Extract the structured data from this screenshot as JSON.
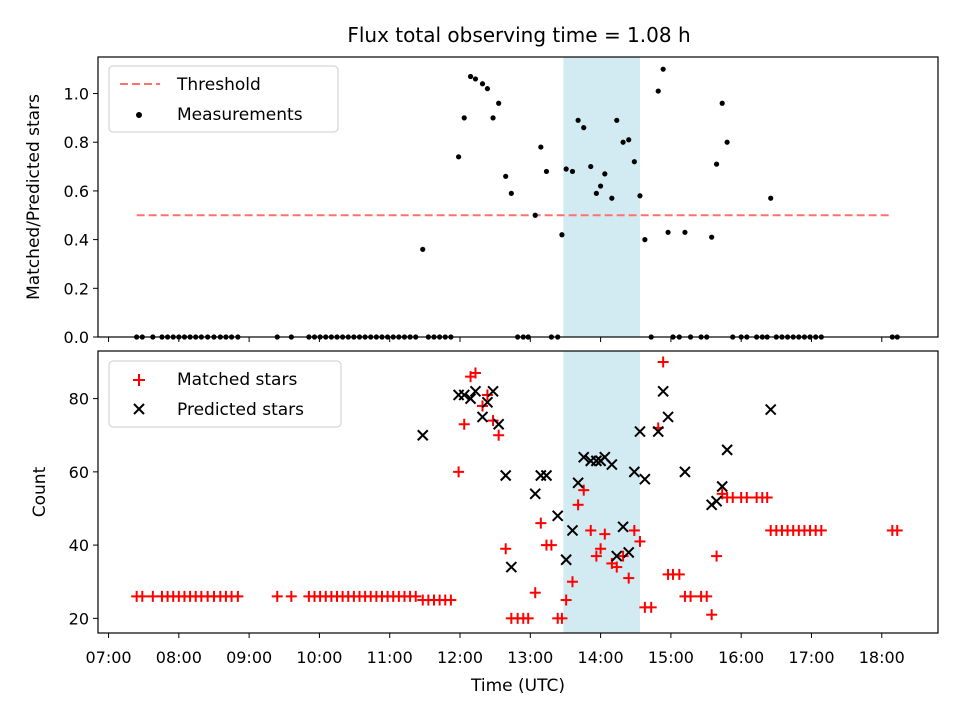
{
  "title": "Flux total observing time = 1.08 h",
  "colors": {
    "threshold": "#ff7070",
    "measurement": "#000000",
    "matched": "#ff0000",
    "predicted": "#000000",
    "span": "#add8e6"
  },
  "chart_data": [
    {
      "type": "scatter",
      "xlabel": "",
      "ylabel": "Matched/Predicted stars",
      "xlim": [
        6.85,
        18.8
      ],
      "ylim": [
        0,
        1.15
      ],
      "yticks": [
        "0.0",
        "0.2",
        "0.4",
        "0.6",
        "0.8",
        "1.0"
      ],
      "grid": false,
      "legend_position": "top-left",
      "shaded_span": [
        13.47,
        14.56
      ],
      "threshold": {
        "name": "Threshold",
        "x": [
          7.4,
          18.15
        ],
        "y": 0.5
      },
      "measurements": {
        "name": "Measurements",
        "points": [
          [
            7.4,
            0
          ],
          [
            7.48,
            0
          ],
          [
            7.63,
            0
          ],
          [
            7.76,
            0
          ],
          [
            7.84,
            0
          ],
          [
            7.92,
            0
          ],
          [
            8.0,
            0
          ],
          [
            8.08,
            0
          ],
          [
            8.16,
            0
          ],
          [
            8.24,
            0
          ],
          [
            8.32,
            0
          ],
          [
            8.41,
            0
          ],
          [
            8.5,
            0
          ],
          [
            8.59,
            0
          ],
          [
            8.67,
            0
          ],
          [
            8.75,
            0
          ],
          [
            8.84,
            0
          ],
          [
            9.4,
            0
          ],
          [
            9.6,
            0
          ],
          [
            9.85,
            0
          ],
          [
            9.93,
            0
          ],
          [
            10.01,
            0
          ],
          [
            10.09,
            0
          ],
          [
            10.17,
            0
          ],
          [
            10.25,
            0
          ],
          [
            10.33,
            0
          ],
          [
            10.41,
            0
          ],
          [
            10.49,
            0
          ],
          [
            10.57,
            0
          ],
          [
            10.65,
            0
          ],
          [
            10.73,
            0
          ],
          [
            10.81,
            0
          ],
          [
            10.89,
            0
          ],
          [
            10.97,
            0
          ],
          [
            11.05,
            0
          ],
          [
            11.13,
            0
          ],
          [
            11.21,
            0
          ],
          [
            11.29,
            0
          ],
          [
            11.37,
            0
          ],
          [
            11.47,
            0.36
          ],
          [
            11.55,
            0
          ],
          [
            11.63,
            0
          ],
          [
            11.71,
            0
          ],
          [
            11.79,
            0
          ],
          [
            11.87,
            0
          ],
          [
            11.98,
            0.74
          ],
          [
            12.06,
            0.9
          ],
          [
            12.15,
            1.07
          ],
          [
            12.22,
            1.06
          ],
          [
            12.32,
            1.04
          ],
          [
            12.39,
            1.02
          ],
          [
            12.47,
            0.9
          ],
          [
            12.55,
            0.96
          ],
          [
            12.65,
            0.66
          ],
          [
            12.73,
            0.59
          ],
          [
            12.82,
            0
          ],
          [
            12.9,
            0
          ],
          [
            12.97,
            0
          ],
          [
            13.07,
            0.5
          ],
          [
            13.15,
            0.78
          ],
          [
            13.23,
            0.68
          ],
          [
            13.3,
            0
          ],
          [
            13.39,
            0
          ],
          [
            13.45,
            0.42
          ],
          [
            13.51,
            0.69
          ],
          [
            13.6,
            0.68
          ],
          [
            13.68,
            0.89
          ],
          [
            13.76,
            0.86
          ],
          [
            13.86,
            0.7
          ],
          [
            13.94,
            0.59
          ],
          [
            14.0,
            0.62
          ],
          [
            14.06,
            0.67
          ],
          [
            14.16,
            0.57
          ],
          [
            14.23,
            0.89
          ],
          [
            14.32,
            0.8
          ],
          [
            14.4,
            0.81
          ],
          [
            14.48,
            0.72
          ],
          [
            14.56,
            0.58
          ],
          [
            14.63,
            0.4
          ],
          [
            14.72,
            0
          ],
          [
            14.82,
            1.01
          ],
          [
            14.89,
            1.1
          ],
          [
            14.96,
            0.43
          ],
          [
            15.03,
            0
          ],
          [
            15.12,
            0
          ],
          [
            15.2,
            0.43
          ],
          [
            15.28,
            0
          ],
          [
            15.43,
            0
          ],
          [
            15.51,
            0
          ],
          [
            15.58,
            0.41
          ],
          [
            15.65,
            0.71
          ],
          [
            15.73,
            0.96
          ],
          [
            15.8,
            0.8
          ],
          [
            15.88,
            0
          ],
          [
            16.0,
            0
          ],
          [
            16.08,
            0
          ],
          [
            16.22,
            0
          ],
          [
            16.3,
            0
          ],
          [
            16.37,
            0
          ],
          [
            16.42,
            0.57
          ],
          [
            16.5,
            0
          ],
          [
            16.58,
            0
          ],
          [
            16.66,
            0
          ],
          [
            16.74,
            0
          ],
          [
            16.82,
            0
          ],
          [
            16.9,
            0
          ],
          [
            16.98,
            0
          ],
          [
            17.06,
            0
          ],
          [
            17.14,
            0
          ],
          [
            18.15,
            0
          ],
          [
            18.22,
            0
          ]
        ]
      }
    },
    {
      "type": "scatter",
      "xlabel": "Time (UTC)",
      "ylabel": "Count",
      "xlim": [
        6.85,
        18.8
      ],
      "ylim": [
        16,
        93
      ],
      "yticks": [
        "20",
        "40",
        "60",
        "80"
      ],
      "xticks": [
        "07:00",
        "08:00",
        "09:00",
        "10:00",
        "11:00",
        "12:00",
        "13:00",
        "14:00",
        "15:00",
        "16:00",
        "17:00",
        "18:00"
      ],
      "grid": false,
      "legend_position": "top-left",
      "shaded_span": [
        13.47,
        14.56
      ],
      "series": [
        {
          "name": "Matched stars",
          "points": [
            [
              7.4,
              26
            ],
            [
              7.48,
              26
            ],
            [
              7.63,
              26
            ],
            [
              7.76,
              26
            ],
            [
              7.84,
              26
            ],
            [
              7.92,
              26
            ],
            [
              8.0,
              26
            ],
            [
              8.08,
              26
            ],
            [
              8.16,
              26
            ],
            [
              8.24,
              26
            ],
            [
              8.32,
              26
            ],
            [
              8.41,
              26
            ],
            [
              8.5,
              26
            ],
            [
              8.59,
              26
            ],
            [
              8.67,
              26
            ],
            [
              8.75,
              26
            ],
            [
              8.84,
              26
            ],
            [
              9.4,
              26
            ],
            [
              9.6,
              26
            ],
            [
              9.85,
              26
            ],
            [
              9.93,
              26
            ],
            [
              10.01,
              26
            ],
            [
              10.09,
              26
            ],
            [
              10.17,
              26
            ],
            [
              10.25,
              26
            ],
            [
              10.33,
              26
            ],
            [
              10.41,
              26
            ],
            [
              10.49,
              26
            ],
            [
              10.57,
              26
            ],
            [
              10.65,
              26
            ],
            [
              10.73,
              26
            ],
            [
              10.81,
              26
            ],
            [
              10.89,
              26
            ],
            [
              10.97,
              26
            ],
            [
              11.05,
              26
            ],
            [
              11.13,
              26
            ],
            [
              11.21,
              26
            ],
            [
              11.29,
              26
            ],
            [
              11.37,
              26
            ],
            [
              11.47,
              25
            ],
            [
              11.55,
              25
            ],
            [
              11.63,
              25
            ],
            [
              11.71,
              25
            ],
            [
              11.79,
              25
            ],
            [
              11.87,
              25
            ],
            [
              11.98,
              60
            ],
            [
              12.06,
              73
            ],
            [
              12.15,
              86
            ],
            [
              12.22,
              87
            ],
            [
              12.32,
              78
            ],
            [
              12.39,
              81
            ],
            [
              12.47,
              74
            ],
            [
              12.55,
              70
            ],
            [
              12.65,
              39
            ],
            [
              12.73,
              20
            ],
            [
              12.82,
              20
            ],
            [
              12.9,
              20
            ],
            [
              12.97,
              20
            ],
            [
              13.07,
              27
            ],
            [
              13.15,
              46
            ],
            [
              13.23,
              40
            ],
            [
              13.3,
              40
            ],
            [
              13.39,
              20
            ],
            [
              13.45,
              20
            ],
            [
              13.51,
              25
            ],
            [
              13.6,
              30
            ],
            [
              13.68,
              51
            ],
            [
              13.76,
              55
            ],
            [
              13.86,
              44
            ],
            [
              13.94,
              37
            ],
            [
              14.0,
              39
            ],
            [
              14.06,
              43
            ],
            [
              14.16,
              35
            ],
            [
              14.23,
              34
            ],
            [
              14.32,
              37
            ],
            [
              14.4,
              31
            ],
            [
              14.48,
              44
            ],
            [
              14.56,
              41
            ],
            [
              14.63,
              23
            ],
            [
              14.72,
              23
            ],
            [
              14.82,
              72
            ],
            [
              14.89,
              90
            ],
            [
              14.96,
              32
            ],
            [
              15.03,
              32
            ],
            [
              15.12,
              32
            ],
            [
              15.2,
              26
            ],
            [
              15.28,
              26
            ],
            [
              15.43,
              26
            ],
            [
              15.51,
              26
            ],
            [
              15.58,
              21
            ],
            [
              15.65,
              37
            ],
            [
              15.73,
              54
            ],
            [
              15.8,
              53
            ],
            [
              15.88,
              53
            ],
            [
              16.0,
              53
            ],
            [
              16.08,
              53
            ],
            [
              16.22,
              53
            ],
            [
              16.3,
              53
            ],
            [
              16.37,
              53
            ],
            [
              16.42,
              44
            ],
            [
              16.5,
              44
            ],
            [
              16.58,
              44
            ],
            [
              16.66,
              44
            ],
            [
              16.74,
              44
            ],
            [
              16.82,
              44
            ],
            [
              16.9,
              44
            ],
            [
              16.98,
              44
            ],
            [
              17.06,
              44
            ],
            [
              17.14,
              44
            ],
            [
              18.15,
              44
            ],
            [
              18.22,
              44
            ]
          ]
        },
        {
          "name": "Predicted stars",
          "points": [
            [
              11.47,
              70
            ],
            [
              11.98,
              81
            ],
            [
              12.06,
              81
            ],
            [
              12.15,
              80
            ],
            [
              12.22,
              82
            ],
            [
              12.32,
              75
            ],
            [
              12.39,
              79
            ],
            [
              12.47,
              82
            ],
            [
              12.55,
              73
            ],
            [
              12.65,
              59
            ],
            [
              12.73,
              34
            ],
            [
              13.07,
              54
            ],
            [
              13.15,
              59
            ],
            [
              13.23,
              59
            ],
            [
              13.39,
              48
            ],
            [
              13.51,
              36
            ],
            [
              13.6,
              44
            ],
            [
              13.68,
              57
            ],
            [
              13.76,
              64
            ],
            [
              13.86,
              63
            ],
            [
              13.94,
              63
            ],
            [
              14.0,
              63
            ],
            [
              14.06,
              64
            ],
            [
              14.16,
              62
            ],
            [
              14.23,
              37
            ],
            [
              14.32,
              45
            ],
            [
              14.4,
              38
            ],
            [
              14.48,
              60
            ],
            [
              14.56,
              71
            ],
            [
              14.63,
              58
            ],
            [
              14.82,
              71
            ],
            [
              14.89,
              82
            ],
            [
              14.96,
              75
            ],
            [
              15.2,
              60
            ],
            [
              15.58,
              51
            ],
            [
              15.65,
              52
            ],
            [
              15.73,
              56
            ],
            [
              15.8,
              66
            ],
            [
              16.42,
              77
            ]
          ]
        }
      ]
    }
  ]
}
